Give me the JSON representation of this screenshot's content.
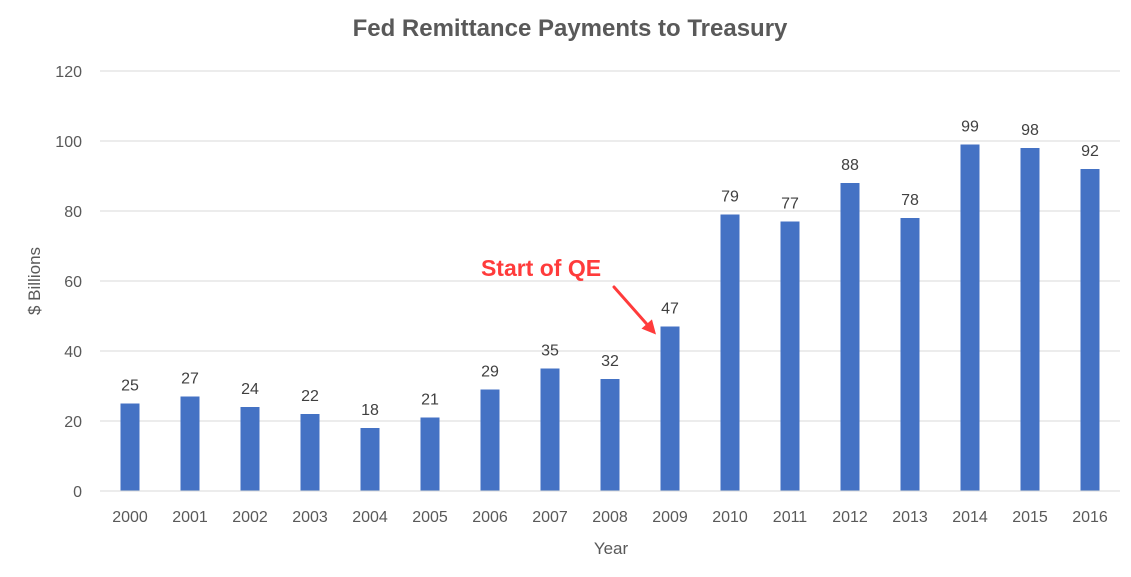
{
  "chart_data": {
    "type": "bar",
    "title": "Fed Remittance Payments to Treasury",
    "xlabel": "Year",
    "ylabel": "$ Billions",
    "categories": [
      "2000",
      "2001",
      "2002",
      "2003",
      "2004",
      "2005",
      "2006",
      "2007",
      "2008",
      "2009",
      "2010",
      "2011",
      "2012",
      "2013",
      "2014",
      "2015",
      "2016"
    ],
    "values": [
      25,
      27,
      24,
      22,
      18,
      21,
      29,
      35,
      32,
      47,
      79,
      77,
      88,
      78,
      99,
      98,
      92
    ],
    "ylim": [
      0,
      120
    ],
    "yticks": [
      0,
      20,
      40,
      60,
      80,
      100,
      120
    ],
    "grid": true,
    "legend": "none",
    "bar_color": "#4472c4",
    "annotation": {
      "text": "Start of QE",
      "target_category": "2009",
      "color": "#ff3b3b"
    }
  }
}
